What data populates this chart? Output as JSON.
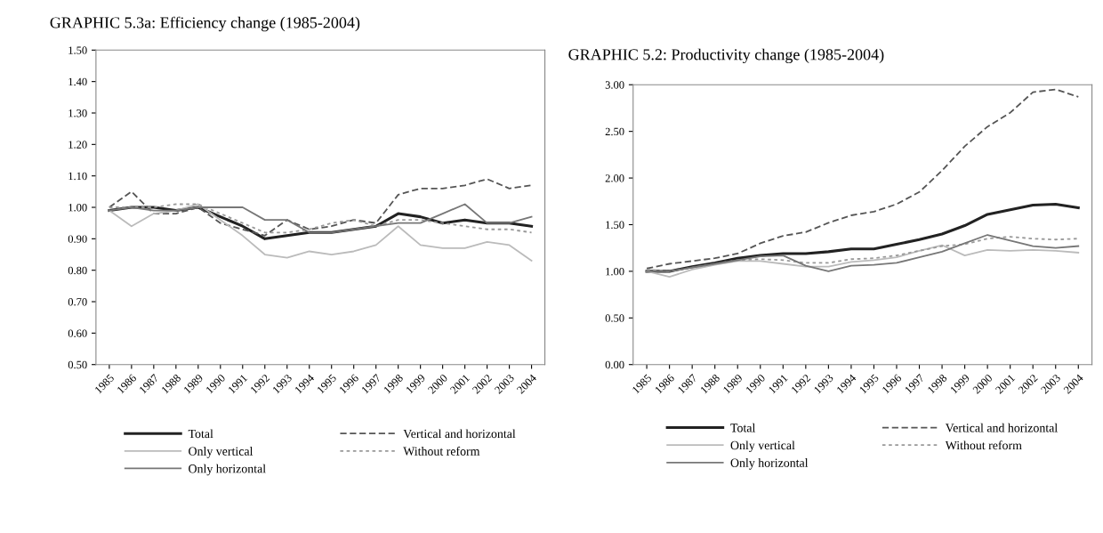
{
  "chart_data": [
    {
      "type": "line",
      "title": "GRAPHIC 5.3a: Efficiency change (1985-2004)",
      "categories": [
        "1985",
        "1986",
        "1987",
        "1988",
        "1989",
        "1990",
        "1991",
        "1992",
        "1993",
        "1994",
        "1995",
        "1996",
        "1997",
        "1998",
        "1999",
        "2000",
        "2001",
        "2002",
        "2003",
        "2004"
      ],
      "ylim": [
        0.5,
        1.5
      ],
      "yticks": [
        {
          "value": 0.5,
          "label": "0.50"
        },
        {
          "value": 0.6,
          "label": "0.60"
        },
        {
          "value": 0.7,
          "label": "0.70"
        },
        {
          "value": 0.8,
          "label": "0.80"
        },
        {
          "value": 0.9,
          "label": "0.90"
        },
        {
          "value": 1.0,
          "label": "1.00"
        },
        {
          "value": 1.1,
          "label": "1.10"
        },
        {
          "value": 1.2,
          "label": "1.20"
        },
        {
          "value": 1.3,
          "label": "1.30"
        },
        {
          "value": 1.4,
          "label": "1.40"
        },
        {
          "value": 1.5,
          "label": "1.50"
        }
      ],
      "grid": false,
      "legend": "bottom",
      "series": [
        {
          "name": "Total",
          "color": "#222222",
          "line_style": "solid",
          "values": [
            0.99,
            1.0,
            1.0,
            0.99,
            1.0,
            0.97,
            0.94,
            0.9,
            0.91,
            0.92,
            0.92,
            0.93,
            0.94,
            0.98,
            0.97,
            0.95,
            0.96,
            0.95,
            0.95,
            0.94
          ]
        },
        {
          "name": "Vertical and horizontal",
          "color": "#555555",
          "line_style": "dashed",
          "values": [
            1.0,
            1.05,
            0.98,
            0.98,
            1.0,
            0.95,
            0.93,
            0.91,
            0.96,
            0.93,
            0.94,
            0.96,
            0.95,
            1.04,
            1.06,
            1.06,
            1.07,
            1.09,
            1.06,
            1.07
          ]
        },
        {
          "name": "Only vertical",
          "color": "#bbbbbb",
          "line_style": "solid",
          "values": [
            0.99,
            0.94,
            0.98,
            0.99,
            1.01,
            0.96,
            0.91,
            0.85,
            0.84,
            0.86,
            0.85,
            0.86,
            0.88,
            0.94,
            0.88,
            0.87,
            0.87,
            0.89,
            0.88,
            0.83
          ]
        },
        {
          "name": "Without reform",
          "color": "#999999",
          "line_style": "dotted",
          "values": [
            1.0,
            1.0,
            1.0,
            1.01,
            1.01,
            0.98,
            0.95,
            0.92,
            0.92,
            0.93,
            0.95,
            0.96,
            0.94,
            0.96,
            0.96,
            0.95,
            0.94,
            0.93,
            0.93,
            0.92
          ]
        },
        {
          "name": "Only horizontal",
          "color": "#777777",
          "line_style": "solid",
          "values": [
            0.99,
            1.0,
            0.99,
            0.99,
            1.0,
            1.0,
            1.0,
            0.96,
            0.96,
            0.92,
            0.92,
            0.93,
            0.94,
            0.95,
            0.95,
            0.98,
            1.01,
            0.95,
            0.95,
            0.97
          ]
        }
      ]
    },
    {
      "type": "line",
      "title": "GRAPHIC 5.2: Productivity change (1985-2004)",
      "categories": [
        "1985",
        "1986",
        "1987",
        "1988",
        "1989",
        "1990",
        "1991",
        "1992",
        "1993",
        "1994",
        "1995",
        "1996",
        "1997",
        "1998",
        "1999",
        "2000",
        "2001",
        "2002",
        "2003",
        "2004"
      ],
      "ylim": [
        0.0,
        3.0
      ],
      "yticks": [
        {
          "value": 0.0,
          "label": "0.00"
        },
        {
          "value": 0.5,
          "label": "0.50"
        },
        {
          "value": 1.0,
          "label": "1.00"
        },
        {
          "value": 1.5,
          "label": "1.50"
        },
        {
          "value": 2.0,
          "label": "2.00"
        },
        {
          "value": 2.5,
          "label": "2.50"
        },
        {
          "value": 3.0,
          "label": "3.00"
        }
      ],
      "grid": false,
      "legend": "bottom",
      "series": [
        {
          "name": "Total",
          "color": "#222222",
          "line_style": "solid",
          "values": [
            1.0,
            1.0,
            1.05,
            1.09,
            1.14,
            1.17,
            1.19,
            1.19,
            1.21,
            1.24,
            1.24,
            1.29,
            1.34,
            1.4,
            1.49,
            1.61,
            1.66,
            1.71,
            1.72,
            1.68
          ]
        },
        {
          "name": "Vertical and horizontal",
          "color": "#555555",
          "line_style": "dashed",
          "values": [
            1.03,
            1.08,
            1.11,
            1.14,
            1.19,
            1.3,
            1.38,
            1.42,
            1.52,
            1.6,
            1.64,
            1.72,
            1.85,
            2.08,
            2.34,
            2.55,
            2.7,
            2.92,
            2.95,
            2.87
          ]
        },
        {
          "name": "Only vertical",
          "color": "#bbbbbb",
          "line_style": "solid",
          "values": [
            1.0,
            0.94,
            1.02,
            1.07,
            1.11,
            1.11,
            1.08,
            1.05,
            1.05,
            1.1,
            1.12,
            1.15,
            1.22,
            1.28,
            1.17,
            1.23,
            1.22,
            1.23,
            1.22,
            1.2
          ]
        },
        {
          "name": "Without reform",
          "color": "#999999",
          "line_style": "dotted",
          "values": [
            1.02,
            1.0,
            1.04,
            1.08,
            1.12,
            1.13,
            1.12,
            1.09,
            1.09,
            1.13,
            1.14,
            1.17,
            1.22,
            1.27,
            1.29,
            1.35,
            1.37,
            1.35,
            1.34,
            1.35
          ]
        },
        {
          "name": "Only horizontal",
          "color": "#777777",
          "line_style": "solid",
          "values": [
            1.0,
            1.0,
            1.04,
            1.08,
            1.12,
            1.16,
            1.17,
            1.06,
            1.0,
            1.06,
            1.07,
            1.09,
            1.15,
            1.21,
            1.3,
            1.39,
            1.33,
            1.27,
            1.25,
            1.27
          ]
        }
      ]
    }
  ]
}
